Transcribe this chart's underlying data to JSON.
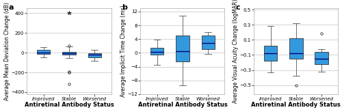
{
  "panel_a": {
    "ylabel": "Average Mean Deviation Change (dB)",
    "xlabel": "Antiretinal Antibody Status",
    "label": "a",
    "ylim": [
      -420,
      450
    ],
    "yticks": [
      -400,
      -200,
      0,
      200,
      400
    ],
    "categories": [
      "Improved",
      "Stable",
      "Worsened"
    ],
    "boxes": [
      {
        "q1": -15,
        "median": 2,
        "q3": 25,
        "whislo": -45,
        "whishi": 55,
        "fliers": [],
        "far_fliers": []
      },
      {
        "q1": -20,
        "median": -5,
        "q3": 10,
        "whislo": -55,
        "whishi": 65,
        "fliers": [
          70,
          -200,
          -190,
          -315
        ],
        "far_fliers": [
          400
        ]
      },
      {
        "q1": -50,
        "median": -20,
        "q3": -5,
        "whislo": -85,
        "whishi": 25,
        "fliers": [],
        "far_fliers": []
      }
    ]
  },
  "panel_b": {
    "ylabel": "Average Implicit Time Change (ms)",
    "xlabel": "Antiretinal Antibody Status",
    "label": "b",
    "ylim": [
      -12,
      13
    ],
    "yticks": [
      -12,
      -8,
      -4,
      0,
      4,
      8,
      12
    ],
    "categories": [
      "Improved",
      "Stable",
      "Worsened"
    ],
    "boxes": [
      {
        "q1": -0.5,
        "median": 0.2,
        "q3": 1.5,
        "whislo": -3.5,
        "whishi": 3.8,
        "fliers": [],
        "far_fliers": []
      },
      {
        "q1": -2.5,
        "median": 0.5,
        "q3": 5.0,
        "whislo": -9.5,
        "whishi": 10.8,
        "fliers": [],
        "far_fliers": []
      },
      {
        "q1": 1.0,
        "median": 2.8,
        "q3": 5.0,
        "whislo": -0.3,
        "whishi": 6.0,
        "fliers": [],
        "far_fliers": []
      }
    ]
  },
  "panel_c": {
    "ylabel": "Average Visual Acuity Change (logMAR)",
    "xlabel": "Antiretinal Antibody Status",
    "label": "c",
    "ylim": [
      -0.62,
      0.52
    ],
    "yticks": [
      -0.5,
      -0.3,
      -0.1,
      0.1,
      0.3,
      0.5
    ],
    "categories": [
      "Improved",
      "Stable",
      "Worsened"
    ],
    "boxes": [
      {
        "q1": -0.18,
        "median": -0.08,
        "q3": 0.02,
        "whislo": -0.33,
        "whishi": 0.28,
        "fliers": [],
        "far_fliers": []
      },
      {
        "q1": -0.15,
        "median": -0.08,
        "q3": 0.12,
        "whislo": -0.38,
        "whishi": 0.32,
        "fliers": [
          -0.5
        ],
        "far_fliers": []
      },
      {
        "q1": -0.22,
        "median": -0.15,
        "q3": -0.06,
        "whislo": -0.32,
        "whishi": -0.02,
        "fliers": [
          0.18
        ],
        "far_fliers": []
      }
    ]
  },
  "box_facecolor": "#3399dd",
  "box_edgecolor": "#333333",
  "median_color": "#000080",
  "whisker_color": "#555555",
  "cap_color": "#555555",
  "flier_marker": "o",
  "far_flier_marker": "*",
  "flier_color": "#333333",
  "background_color": "#ffffff",
  "grid_color": "#cccccc",
  "ylabel_fontsize": 5.5,
  "xlabel_fontsize": 6.0,
  "tick_fontsize": 5.0,
  "panel_label_fontsize": 8
}
